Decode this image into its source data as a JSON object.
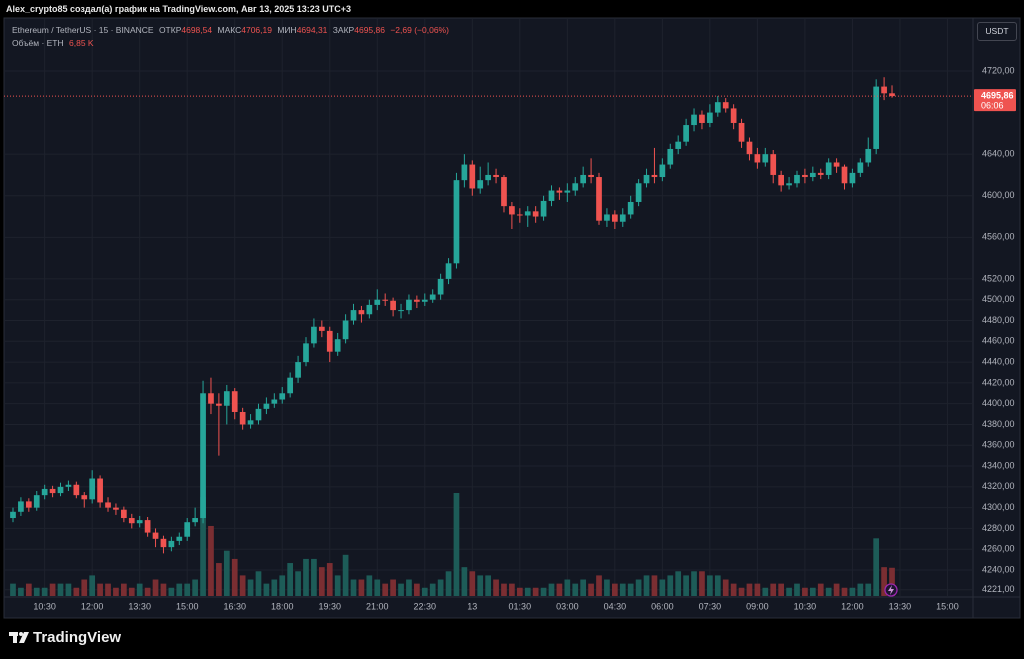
{
  "header": {
    "title": "Alex_crypto85 создал(а) график на TradingView.com, Авг 13, 2025 13:23 UTC+3"
  },
  "chart_data": {
    "type": "candlestick",
    "symbol": "Ethereum / TetherUS · 15 · BINANCE",
    "legend": {
      "open_label": "ОТКР",
      "open": "4698,54",
      "high_label": "МАКС",
      "high": "4706,19",
      "low_label": "МИН",
      "low": "4694,31",
      "close_label": "ЗАКР",
      "close": "4695,86",
      "change": "−2,69 (−0,06%)",
      "volume_title": "Объём · ETH",
      "volume": "6,85 K"
    },
    "currency": "USDT",
    "countdown": "06:06",
    "up_color": "#26a69a",
    "down_color": "#ef5350",
    "volume_up_color": "#1d5c58",
    "volume_down_color": "#7b2e32",
    "grid": true,
    "xlim": [
      -0.63,
      121.1
    ],
    "ylim": [
      4215,
      4745
    ],
    "yticks": [
      {
        "value": 4221,
        "label": "4221,00"
      },
      {
        "value": 4240,
        "label": "4240,00"
      },
      {
        "value": 4260,
        "label": "4260,00"
      },
      {
        "value": 4280,
        "label": "4280,00"
      },
      {
        "value": 4300,
        "label": "4300,00"
      },
      {
        "value": 4320,
        "label": "4320,00"
      },
      {
        "value": 4340,
        "label": "4340,00"
      },
      {
        "value": 4360,
        "label": "4360,00"
      },
      {
        "value": 4380,
        "label": "4380,00"
      },
      {
        "value": 4400,
        "label": "4400,00"
      },
      {
        "value": 4420,
        "label": "4420,00"
      },
      {
        "value": 4440,
        "label": "4440,00"
      },
      {
        "value": 4460,
        "label": "4460,00"
      },
      {
        "value": 4480,
        "label": "4480,00"
      },
      {
        "value": 4500,
        "label": "4500,00"
      },
      {
        "value": 4520,
        "label": "4520,00"
      },
      {
        "value": 4560,
        "label": "4560,00"
      },
      {
        "value": 4600,
        "label": "4600,00"
      },
      {
        "value": 4640,
        "label": "4640,00"
      },
      {
        "value": 4720,
        "label": "4720,00"
      }
    ],
    "xticks": [
      {
        "value": 4,
        "label": "10:30"
      },
      {
        "value": 10,
        "label": "12:00"
      },
      {
        "value": 16,
        "label": "13:30"
      },
      {
        "value": 22,
        "label": "15:00"
      },
      {
        "value": 28,
        "label": "16:30"
      },
      {
        "value": 34,
        "label": "18:00"
      },
      {
        "value": 40,
        "label": "19:30"
      },
      {
        "value": 46,
        "label": "21:00"
      },
      {
        "value": 52,
        "label": "22:30"
      },
      {
        "value": 58,
        "label": "13"
      },
      {
        "value": 64,
        "label": "01:30"
      },
      {
        "value": 70,
        "label": "03:00"
      },
      {
        "value": 76,
        "label": "04:30"
      },
      {
        "value": 82,
        "label": "06:00"
      },
      {
        "value": 88,
        "label": "07:30"
      },
      {
        "value": 94,
        "label": "09:00"
      },
      {
        "value": 100,
        "label": "10:30"
      },
      {
        "value": 106,
        "label": "12:00"
      },
      {
        "value": 112,
        "label": "13:30"
      },
      {
        "value": 118,
        "label": "15:00"
      }
    ],
    "x": [
      0,
      1,
      2,
      3,
      4,
      5,
      6,
      7,
      8,
      9,
      10,
      11,
      12,
      13,
      14,
      15,
      16,
      17,
      18,
      19,
      20,
      21,
      22,
      23,
      24,
      25,
      26,
      27,
      28,
      29,
      30,
      31,
      32,
      33,
      34,
      35,
      36,
      37,
      38,
      39,
      40,
      41,
      42,
      43,
      44,
      45,
      46,
      47,
      48,
      49,
      50,
      51,
      52,
      53,
      54,
      55,
      56,
      57,
      58,
      59,
      60,
      61,
      62,
      63,
      64,
      65,
      66,
      67,
      68,
      69,
      70,
      71,
      72,
      73,
      74,
      75,
      76,
      77,
      78,
      79,
      80,
      81,
      82,
      83,
      84,
      85,
      86,
      87,
      88,
      89,
      90,
      91,
      92,
      93,
      94,
      95,
      96,
      97,
      98,
      99,
      100,
      101,
      102,
      103,
      104,
      105,
      106,
      107,
      108,
      109,
      110,
      111
    ],
    "open": [
      4290,
      4296,
      4306,
      4300,
      4312,
      4318,
      4314,
      4320,
      4322,
      4312,
      4308,
      4328,
      4305,
      4300,
      4298,
      4290,
      4285,
      4288,
      4276,
      4270,
      4262,
      4268,
      4272,
      4286,
      4290,
      4410,
      4400,
      4398,
      4412,
      4392,
      4380,
      4384,
      4395,
      4400,
      4404,
      4410,
      4425,
      4440,
      4458,
      4474,
      4470,
      4450,
      4462,
      4480,
      4490,
      4486,
      4495,
      4500,
      4499,
      4490,
      4490,
      4500,
      4498,
      4500,
      4505,
      4520,
      4535,
      4615,
      4630,
      4607,
      4615,
      4620,
      4618,
      4590,
      4582,
      4581,
      4585,
      4580,
      4595,
      4605,
      4603,
      4605,
      4612,
      4620,
      4618,
      4576,
      4582,
      4575,
      4582,
      4594,
      4612,
      4620,
      4618,
      4630,
      4645,
      4652,
      4668,
      4678,
      4670,
      4680,
      4690,
      4684,
      4670,
      4652,
      4640,
      4632,
      4640,
      4620,
      4610,
      4612,
      4620,
      4618,
      4622,
      4620,
      4632,
      4628,
      4612,
      4622,
      4632,
      4645,
      4705,
      4698.54
    ],
    "high": [
      4300,
      4310,
      4309,
      4316,
      4322,
      4321,
      4324,
      4326,
      4325,
      4315,
      4336,
      4331,
      4310,
      4304,
      4301,
      4294,
      4292,
      4291,
      4280,
      4273,
      4272,
      4276,
      4290,
      4300,
      4422,
      4425,
      4410,
      4418,
      4415,
      4396,
      4390,
      4400,
      4406,
      4410,
      4416,
      4430,
      4446,
      4464,
      4482,
      4480,
      4474,
      4468,
      4486,
      4496,
      4494,
      4500,
      4510,
      4506,
      4502,
      4496,
      4505,
      4504,
      4506,
      4510,
      4525,
      4540,
      4622,
      4640,
      4634,
      4628,
      4632,
      4626,
      4620,
      4594,
      4588,
      4590,
      4590,
      4600,
      4610,
      4608,
      4612,
      4618,
      4628,
      4636,
      4622,
      4588,
      4586,
      4588,
      4600,
      4616,
      4626,
      4646,
      4636,
      4650,
      4658,
      4674,
      4684,
      4682,
      4688,
      4696,
      4694,
      4688,
      4674,
      4656,
      4646,
      4646,
      4644,
      4624,
      4618,
      4624,
      4626,
      4628,
      4626,
      4636,
      4636,
      4630,
      4626,
      4636,
      4656,
      4712,
      4714,
      4706.19
    ],
    "low": [
      4286,
      4292,
      4296,
      4297,
      4308,
      4310,
      4311,
      4316,
      4309,
      4300,
      4304,
      4300,
      4296,
      4293,
      4286,
      4280,
      4281,
      4272,
      4262,
      4256,
      4258,
      4264,
      4268,
      4282,
      4285,
      4390,
      4350,
      4380,
      4385,
      4375,
      4376,
      4380,
      4390,
      4396,
      4400,
      4406,
      4420,
      4436,
      4454,
      4464,
      4440,
      4446,
      4458,
      4476,
      4478,
      4482,
      4490,
      4494,
      4484,
      4482,
      4486,
      4492,
      4494,
      4497,
      4500,
      4515,
      4530,
      4608,
      4600,
      4602,
      4610,
      4612,
      4584,
      4568,
      4574,
      4570,
      4574,
      4576,
      4590,
      4596,
      4594,
      4600,
      4608,
      4612,
      4572,
      4570,
      4568,
      4570,
      4578,
      4590,
      4608,
      4612,
      4614,
      4626,
      4640,
      4648,
      4662,
      4664,
      4666,
      4676,
      4680,
      4664,
      4646,
      4634,
      4626,
      4628,
      4612,
      4604,
      4606,
      4608,
      4612,
      4614,
      4616,
      4616,
      4622,
      4606,
      4608,
      4618,
      4628,
      4640,
      4692,
      4694.31
    ],
    "close": [
      4296,
      4306,
      4300,
      4312,
      4318,
      4314,
      4320,
      4322,
      4312,
      4308,
      4328,
      4305,
      4300,
      4298,
      4290,
      4285,
      4288,
      4276,
      4270,
      4262,
      4268,
      4272,
      4286,
      4290,
      4410,
      4400,
      4398,
      4412,
      4392,
      4380,
      4384,
      4395,
      4400,
      4404,
      4410,
      4425,
      4440,
      4458,
      4474,
      4470,
      4450,
      4462,
      4480,
      4490,
      4486,
      4495,
      4500,
      4499,
      4490,
      4490,
      4500,
      4498,
      4500,
      4505,
      4520,
      4535,
      4615,
      4630,
      4607,
      4615,
      4620,
      4618,
      4590,
      4582,
      4581,
      4585,
      4580,
      4595,
      4605,
      4603,
      4605,
      4612,
      4620,
      4618,
      4576,
      4582,
      4575,
      4582,
      4594,
      4612,
      4620,
      4618,
      4630,
      4645,
      4652,
      4668,
      4678,
      4670,
      4680,
      4690,
      4684,
      4670,
      4652,
      4640,
      4632,
      4640,
      4620,
      4610,
      4612,
      4620,
      4618,
      4622,
      4620,
      4632,
      4628,
      4612,
      4622,
      4632,
      4645,
      4705,
      4698.54,
      4695.86
    ],
    "volume": [
      3,
      2,
      3,
      2,
      2,
      3,
      3,
      3,
      2,
      4,
      5,
      3,
      3,
      2,
      3,
      2,
      3,
      2,
      4,
      3,
      2,
      3,
      3,
      4,
      24,
      17,
      8,
      11,
      9,
      5,
      4,
      6,
      3,
      4,
      5,
      8,
      6,
      9,
      9,
      7,
      8,
      5,
      10,
      4,
      4,
      5,
      4,
      3,
      4,
      3,
      4,
      3,
      2,
      3,
      4,
      6,
      25,
      7,
      6,
      5,
      5,
      4,
      3,
      3,
      2,
      2,
      2,
      2,
      3,
      3,
      4,
      3,
      4,
      3,
      5,
      4,
      3,
      3,
      3,
      4,
      5,
      5,
      4,
      5,
      6,
      5,
      6,
      6,
      5,
      5,
      4,
      3,
      2,
      3,
      3,
      2,
      3,
      3,
      2,
      3,
      2,
      2,
      3,
      2,
      3,
      2,
      2,
      3,
      3,
      14,
      7,
      6.85
    ]
  },
  "footer": {
    "brand": "TradingView"
  }
}
